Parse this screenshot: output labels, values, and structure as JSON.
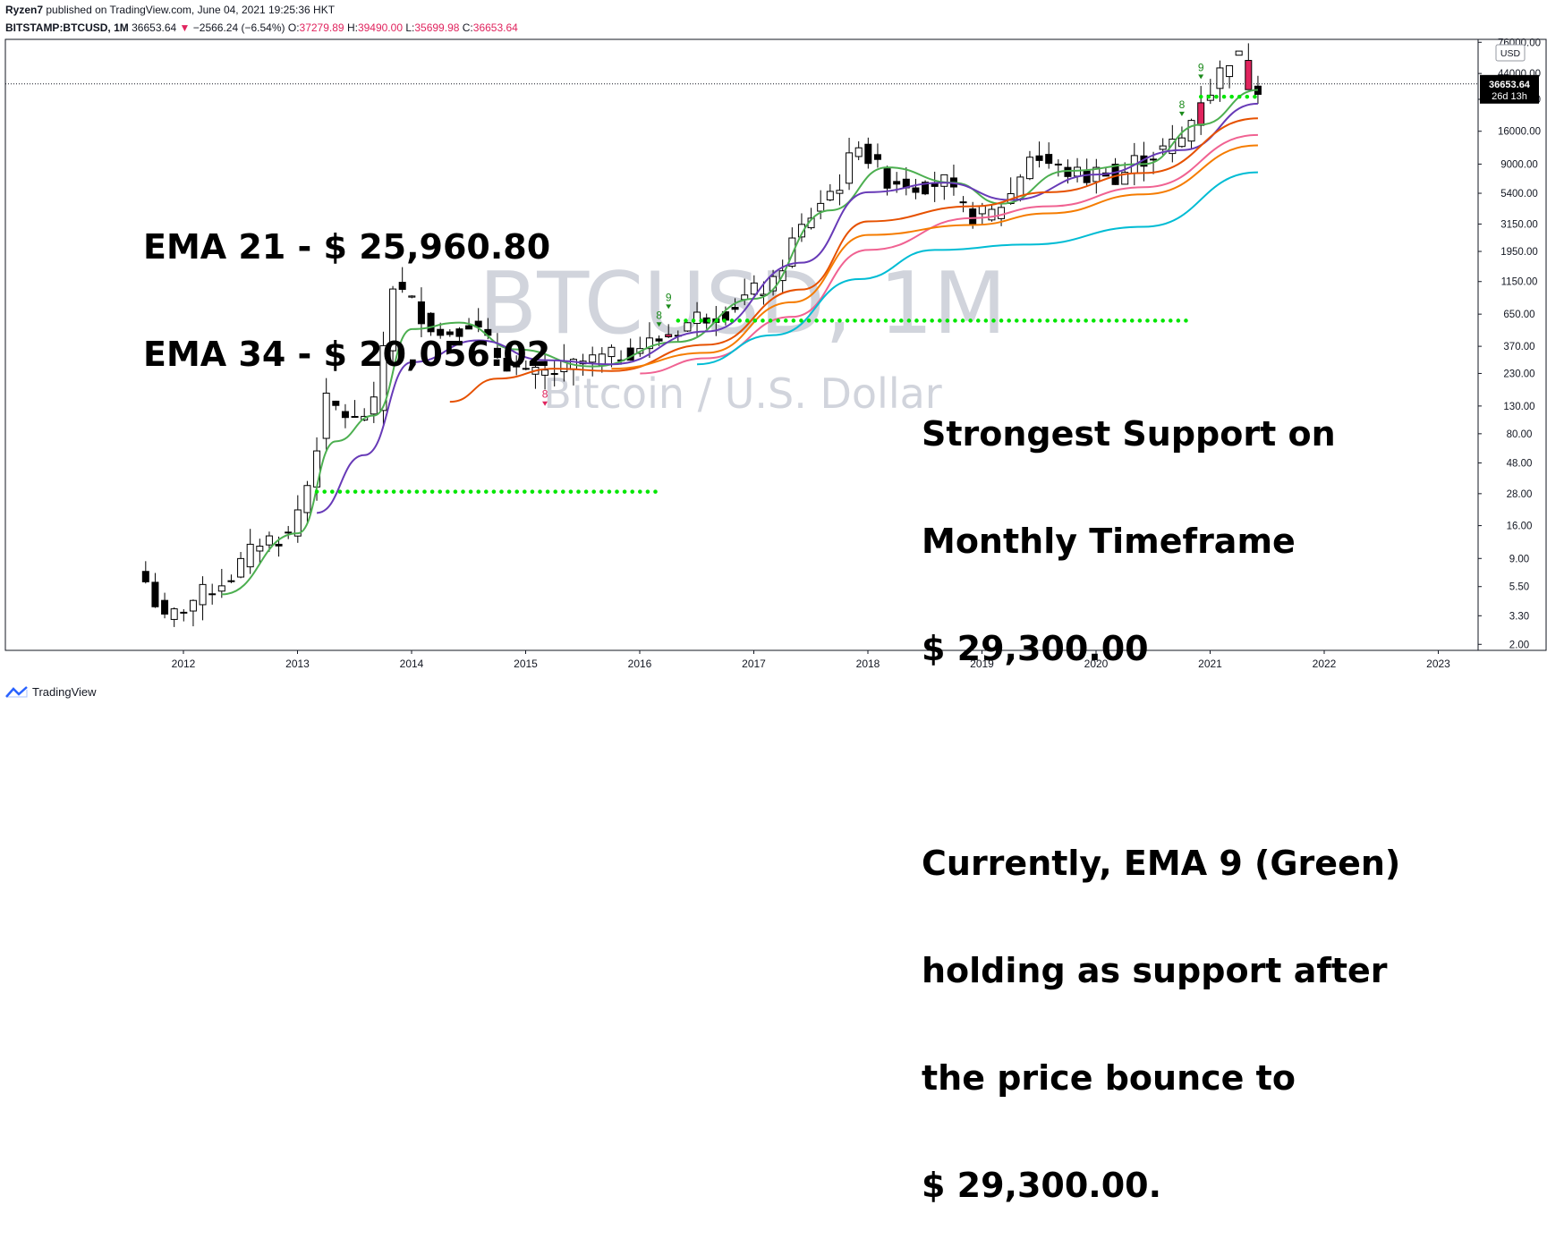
{
  "header": {
    "author": "Ryzen7",
    "published": "published on TradingView.com, June 04, 2021 19:25:36 HKT",
    "symbol": "BITSTAMP:BTCUSD, 1M",
    "last": "36653.64",
    "change_arrow": "▼",
    "change": "−2566.24 (−6.54%)",
    "o_label": "O:",
    "o": "37279.89",
    "h_label": "H:",
    "h": "39490.00",
    "l_label": "L:",
    "l": "35699.98",
    "c_label": "C:",
    "c": "36653.64"
  },
  "watermark": {
    "symbol": "BTCUSD, 1M",
    "description": "Bitcoin / U.S. Dollar"
  },
  "annotations": {
    "ema": [
      "EMA 21 - $ 25,960.80",
      "EMA 34 - $ 20,056.02"
    ],
    "support": [
      "Strongest Support on",
      "Monthly Timeframe",
      "$ 29,300.00",
      "",
      "Currently, EMA 9 (Green)",
      "holding as support after",
      "the price bounce to",
      "$ 29,300.00."
    ]
  },
  "price_axis": {
    "currency": "USD",
    "last_price": "36653.64",
    "countdown": "26d 13h"
  },
  "footer": {
    "brand": "TradingView"
  },
  "colors": {
    "up_candle": "#ffffff",
    "down_candle": "#000000",
    "highlight_candle": "#e0245e",
    "ema_green": "#4caf50",
    "ema_purple": "#673ab7",
    "ema_orange": "#e65100",
    "ema_pink": "#f06292",
    "ema_orange2": "#f57c00",
    "ema_cyan": "#00bcd4",
    "support_dots": "#00e600"
  },
  "chart_data": {
    "type": "candlestick",
    "scale": "log",
    "x_ticks": [
      "2012",
      "2013",
      "2014",
      "2015",
      "2016",
      "2017",
      "2018",
      "2019",
      "2020",
      "2021",
      "2022",
      "2023"
    ],
    "y_ticks": [
      "76000.00",
      "44000.00",
      "28000.00",
      "16000.00",
      "9000.00",
      "5400.00",
      "3150.00",
      "1950.00",
      "1150.00",
      "650.00",
      "370.00",
      "230.00",
      "130.00",
      "80.00",
      "48.00",
      "28.00",
      "16.00",
      "9.00",
      "5.50",
      "3.30",
      "2.00"
    ],
    "y_range": [
      1.8,
      80000
    ],
    "candle_anchors": [
      {
        "date": "2011-09",
        "value": 6
      },
      {
        "date": "2011-11",
        "value": 3
      },
      {
        "date": "2012-03",
        "value": 4.9
      },
      {
        "date": "2012-06",
        "value": 6.7
      },
      {
        "date": "2012-09",
        "value": 12.3
      },
      {
        "date": "2012-12",
        "value": 13.5
      },
      {
        "date": "2013-02",
        "value": 33
      },
      {
        "date": "2013-04",
        "value": 140
      },
      {
        "date": "2013-07",
        "value": 100
      },
      {
        "date": "2013-09",
        "value": 130
      },
      {
        "date": "2013-11",
        "value": 1100
      },
      {
        "date": "2014-01",
        "value": 800
      },
      {
        "date": "2014-04",
        "value": 450
      },
      {
        "date": "2014-07",
        "value": 580
      },
      {
        "date": "2014-10",
        "value": 320
      },
      {
        "date": "2015-01",
        "value": 220
      },
      {
        "date": "2015-04",
        "value": 235
      },
      {
        "date": "2015-07",
        "value": 280
      },
      {
        "date": "2015-10",
        "value": 310
      },
      {
        "date": "2016-01",
        "value": 370
      },
      {
        "date": "2016-04",
        "value": 450
      },
      {
        "date": "2016-07",
        "value": 620
      },
      {
        "date": "2016-10",
        "value": 700
      },
      {
        "date": "2017-01",
        "value": 970
      },
      {
        "date": "2017-03",
        "value": 1080
      },
      {
        "date": "2017-05",
        "value": 2300
      },
      {
        "date": "2017-08",
        "value": 4700
      },
      {
        "date": "2017-10",
        "value": 6500
      },
      {
        "date": "2017-12",
        "value": 14000
      },
      {
        "date": "2018-01",
        "value": 10000
      },
      {
        "date": "2018-03",
        "value": 7000
      },
      {
        "date": "2018-06",
        "value": 6400
      },
      {
        "date": "2018-09",
        "value": 6600
      },
      {
        "date": "2018-11",
        "value": 4000
      },
      {
        "date": "2018-12",
        "value": 3700
      },
      {
        "date": "2019-02",
        "value": 3800
      },
      {
        "date": "2019-04",
        "value": 5300
      },
      {
        "date": "2019-06",
        "value": 10800
      },
      {
        "date": "2019-09",
        "value": 8300
      },
      {
        "date": "2019-12",
        "value": 7200
      },
      {
        "date": "2020-02",
        "value": 8600
      },
      {
        "date": "2020-03",
        "value": 6400
      },
      {
        "date": "2020-05",
        "value": 9500
      },
      {
        "date": "2020-08",
        "value": 11600
      },
      {
        "date": "2020-10",
        "value": 13800
      },
      {
        "date": "2020-11",
        "value": 19700
      },
      {
        "date": "2020-12",
        "value": 29000
      },
      {
        "date": "2021-01",
        "value": 33000
      },
      {
        "date": "2021-02",
        "value": 45000
      },
      {
        "date": "2021-03",
        "value": 58800
      },
      {
        "date": "2021-04",
        "value": 57700
      },
      {
        "date": "2021-05",
        "value": 37300
      },
      {
        "date": "2021-06",
        "value": 36653.64
      }
    ],
    "series": [
      {
        "name": "EMA 9",
        "color": "#4caf50",
        "points": [
          [
            "2012-05",
            4.8
          ],
          [
            "2013-01",
            14
          ],
          [
            "2013-05",
            70
          ],
          [
            "2013-09",
            110
          ],
          [
            "2014-01",
            500
          ],
          [
            "2014-06",
            560
          ],
          [
            "2014-12",
            350
          ],
          [
            "2015-08",
            260
          ],
          [
            "2016-05",
            400
          ],
          [
            "2017-01",
            850
          ],
          [
            "2017-09",
            4000
          ],
          [
            "2018-03",
            8500
          ],
          [
            "2018-10",
            6500
          ],
          [
            "2019-03",
            4500
          ],
          [
            "2019-10",
            8000
          ],
          [
            "2020-06",
            9000
          ],
          [
            "2020-12",
            18000
          ],
          [
            "2021-06",
            33000
          ]
        ]
      },
      {
        "name": "EMA 21",
        "color": "#673ab7",
        "points": [
          [
            "2013-03",
            20
          ],
          [
            "2013-08",
            55
          ],
          [
            "2014-01",
            280
          ],
          [
            "2014-08",
            410
          ],
          [
            "2015-03",
            290
          ],
          [
            "2015-10",
            270
          ],
          [
            "2016-08",
            480
          ],
          [
            "2017-06",
            1600
          ],
          [
            "2018-01",
            5500
          ],
          [
            "2018-09",
            6500
          ],
          [
            "2019-04",
            4800
          ],
          [
            "2020-01",
            7500
          ],
          [
            "2020-10",
            11500
          ],
          [
            "2021-06",
            25960.8
          ]
        ]
      },
      {
        "name": "EMA 34",
        "color": "#e65100",
        "points": [
          [
            "2014-05",
            140
          ],
          [
            "2014-10",
            210
          ],
          [
            "2015-04",
            250
          ],
          [
            "2015-10",
            240
          ],
          [
            "2016-08",
            380
          ],
          [
            "2017-06",
            1000
          ],
          [
            "2018-01",
            3300
          ],
          [
            "2018-12",
            4300
          ],
          [
            "2019-08",
            5500
          ],
          [
            "2020-06",
            7700
          ],
          [
            "2021-06",
            20056.02
          ]
        ]
      },
      {
        "name": "EMA",
        "color": "#f06292",
        "points": [
          [
            "2016-01",
            230
          ],
          [
            "2016-08",
            300
          ],
          [
            "2017-05",
            620
          ],
          [
            "2018-01",
            2000
          ],
          [
            "2018-12",
            3500
          ],
          [
            "2019-08",
            4300
          ],
          [
            "2020-06",
            6000
          ],
          [
            "2021-06",
            15000
          ]
        ]
      },
      {
        "name": "EMA",
        "color": "#f57c00",
        "points": [
          [
            "2015-10",
            250
          ],
          [
            "2016-08",
            330
          ],
          [
            "2017-05",
            800
          ],
          [
            "2018-01",
            2600
          ],
          [
            "2018-12",
            3100
          ],
          [
            "2019-08",
            3800
          ],
          [
            "2020-06",
            5300
          ],
          [
            "2021-06",
            12500
          ]
        ]
      },
      {
        "name": "EMA",
        "color": "#00bcd4",
        "points": [
          [
            "2016-07",
            270
          ],
          [
            "2017-03",
            450
          ],
          [
            "2017-12",
            1200
          ],
          [
            "2018-08",
            2000
          ],
          [
            "2019-06",
            2200
          ],
          [
            "2020-06",
            3000
          ],
          [
            "2021-06",
            7800
          ]
        ]
      }
    ],
    "support_levels": [
      {
        "from": "2013-03",
        "to": "2016-03",
        "value": 29
      },
      {
        "from": "2016-05",
        "to": "2020-11",
        "value": 580
      },
      {
        "from": "2020-12",
        "to": "2021-06",
        "value": 29300
      }
    ],
    "markers": [
      {
        "date": "2015-03",
        "label": "8",
        "color": "#e0245e",
        "value": 150
      },
      {
        "date": "2016-03",
        "label": "8",
        "color": "#1b8a1b",
        "value": 600
      },
      {
        "date": "2016-04",
        "label": "9",
        "color": "#1b8a1b",
        "value": 820
      },
      {
        "date": "2020-10",
        "label": "8",
        "color": "#1b8a1b",
        "value": 24000
      },
      {
        "date": "2020-12",
        "label": "9",
        "color": "#1b8a1b",
        "value": 46000
      }
    ]
  }
}
